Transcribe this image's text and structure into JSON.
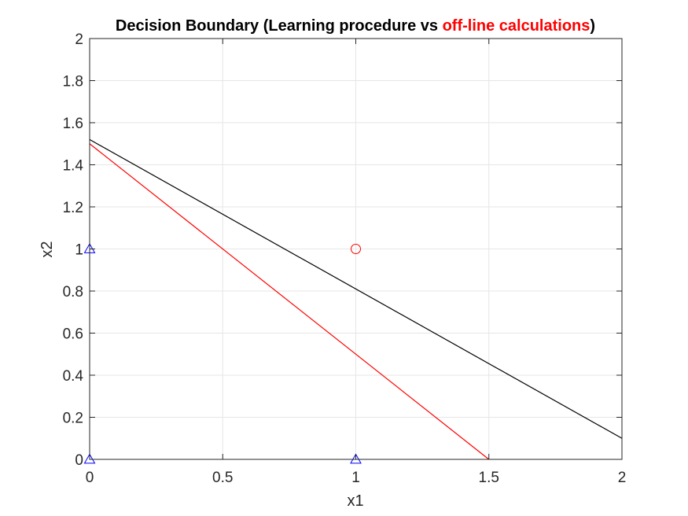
{
  "chart_data": {
    "type": "line",
    "title": {
      "prefix": "Decision Boundary (Learning procedure vs ",
      "highlight": "off-line calculations",
      "suffix": ")"
    },
    "xlabel": "x1",
    "ylabel": "x2",
    "xlim": [
      0,
      2
    ],
    "ylim": [
      0,
      2
    ],
    "x_ticks": [
      0,
      0.5,
      1,
      1.5,
      2
    ],
    "x_tick_labels": [
      "0",
      "0.5",
      "1",
      "1.5",
      "2"
    ],
    "y_ticks": [
      0,
      0.2,
      0.4,
      0.6,
      0.8,
      1,
      1.2,
      1.4,
      1.6,
      1.8,
      2
    ],
    "y_tick_labels": [
      "0",
      "0.2",
      "0.4",
      "0.6",
      "0.8",
      "1",
      "1.2",
      "1.4",
      "1.6",
      "1.8",
      "2"
    ],
    "grid": true,
    "lines": [
      {
        "x": [
          0,
          2
        ],
        "y": [
          1.52,
          0.1
        ],
        "color": "#000000"
      },
      {
        "x": [
          0,
          1.5
        ],
        "y": [
          1.5,
          0
        ],
        "color": "#ff0000"
      }
    ],
    "points": [
      {
        "x": 0,
        "y": 0,
        "marker": "triangle",
        "color": "#0000ff"
      },
      {
        "x": 0,
        "y": 1,
        "marker": "triangle",
        "color": "#0000ff"
      },
      {
        "x": 1,
        "y": 0,
        "marker": "triangle",
        "color": "#0000ff"
      },
      {
        "x": 1,
        "y": 1,
        "marker": "circle",
        "color": "#ff0000"
      }
    ],
    "colors": {
      "title_highlight": "#ff0000",
      "grid": "#e6e6e6",
      "axis": "#262626"
    }
  }
}
